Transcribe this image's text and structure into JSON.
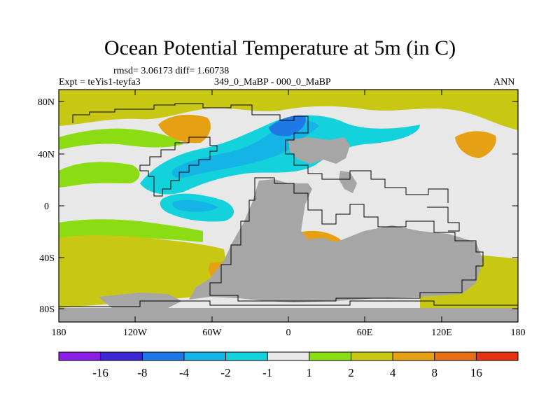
{
  "title": "Ocean Potential Temperature at 5m (in C)",
  "stats": "rmsd= 3.06173 diff= 1.60738",
  "experiment": "Expt = teYis1-teyfa3",
  "period": "349_0_MaBP - 000_0_MaBP",
  "season": "ANN",
  "lat_labels": [
    "80N",
    "40N",
    "0",
    "40S",
    "80S"
  ],
  "lon_labels": [
    "180",
    "120W",
    "60W",
    "0",
    "60E",
    "120E",
    "180"
  ],
  "colorbar": {
    "labels": [
      "-16",
      "-8",
      "-4",
      "-2",
      "-1",
      "1",
      "2",
      "4",
      "8",
      "16"
    ],
    "colors": [
      "#8c1ee6",
      "#3c28d2",
      "#1e78e6",
      "#14b4e6",
      "#14d2dc",
      "#e8e8e8",
      "#8cdc14",
      "#c8c814",
      "#e6a014",
      "#e66e14",
      "#e63214"
    ]
  },
  "palette": {
    "land": "#a6a6a6",
    "neutral": "#e8e8e8",
    "pos2": "#8cdc14",
    "pos4": "#c8c814",
    "pos8": "#e6a014",
    "pos16": "#e66e14",
    "pos32": "#e63214",
    "neg2": "#14d2dc",
    "neg4": "#14b4e6",
    "neg8": "#1e78e6"
  }
}
